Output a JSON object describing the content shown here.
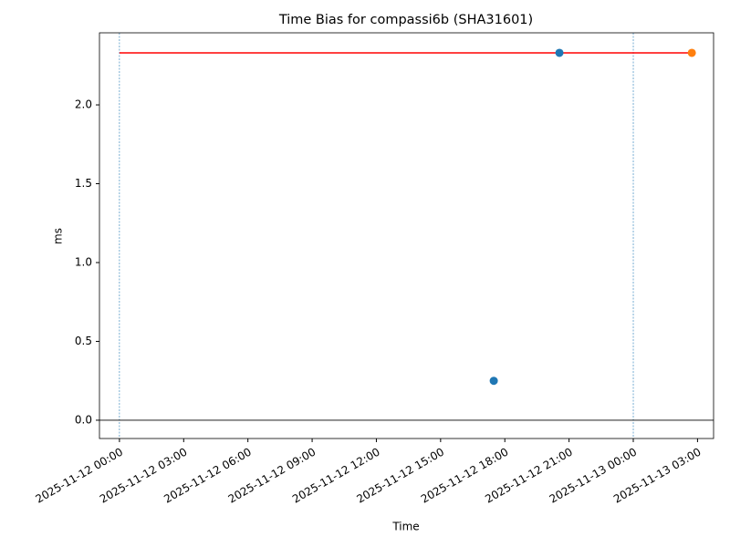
{
  "chart_data": {
    "type": "scatter",
    "title": "Time Bias for compassi6b (SHA31601)",
    "x_label": "Time",
    "y_label": "ms",
    "xlim": [
      "2025-11-11 23:04",
      "2025-11-13 03:45"
    ],
    "ylim": [
      -0.116,
      2.457
    ],
    "xticks": [
      "2025-11-12 00:00",
      "2025-11-12 03:00",
      "2025-11-12 06:00",
      "2025-11-12 09:00",
      "2025-11-12 12:00",
      "2025-11-12 15:00",
      "2025-11-12 18:00",
      "2025-11-12 21:00",
      "2025-11-13 00:00",
      "2025-11-13 03:00"
    ],
    "yticks": [
      {
        "value": 0,
        "label": "0.0"
      },
      0.5,
      {
        "value": 1,
        "label": "1.0"
      },
      1.5,
      {
        "value": 2,
        "label": "2.0"
      }
    ],
    "series": [
      {
        "color": "#1f77b4",
        "x": [
          "2025-11-12 17:29",
          "2025-11-12 20:33"
        ],
        "values": [
          0.25,
          2.33
        ]
      },
      {
        "color": "#ff7f0e",
        "x": [
          "2025-11-13 02:44"
        ],
        "values": [
          2.33
        ]
      }
    ],
    "reference_line": {
      "color": "#ff0000",
      "x": [
        "2025-11-12 00:00",
        "2025-11-13 02:44"
      ],
      "value": 2.33
    },
    "vlines": {
      "color": "#1f77b4",
      "x": [
        "2025-11-12 00:00",
        "2025-11-13 00:00"
      ]
    },
    "hline": {
      "color": "#000000",
      "value": 0
    }
  }
}
